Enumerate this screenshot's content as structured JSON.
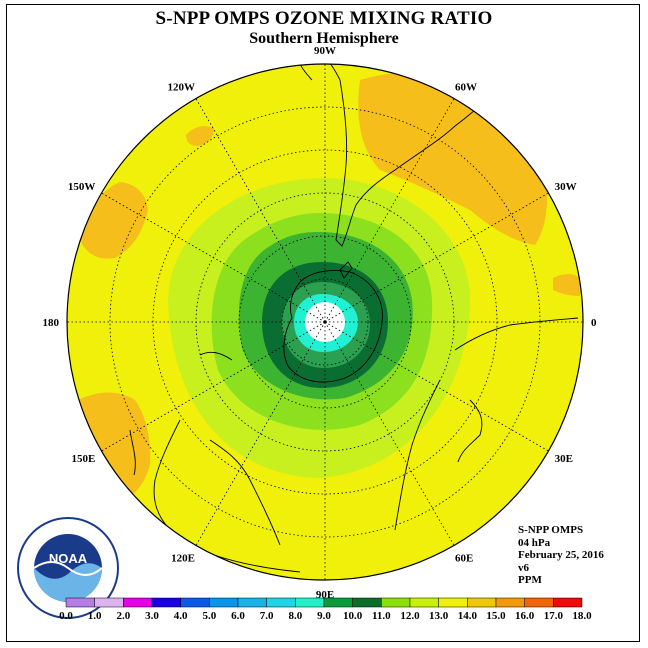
{
  "title": "S-NPP OMPS OZONE MIXING RATIO",
  "subtitle": "Southern Hemisphere",
  "longitude_labels": [
    {
      "text": "90W",
      "lon": -90
    },
    {
      "text": "60W",
      "lon": -60
    },
    {
      "text": "120W",
      "lon": -120
    },
    {
      "text": "30W",
      "lon": -30
    },
    {
      "text": "150W",
      "lon": -150
    },
    {
      "text": "0",
      "lon": 0
    },
    {
      "text": "180",
      "lon": 180
    },
    {
      "text": "30E",
      "lon": 30
    },
    {
      "text": "150E",
      "lon": 150
    },
    {
      "text": "60E",
      "lon": 60
    },
    {
      "text": "120E",
      "lon": 120
    },
    {
      "text": "90E",
      "lon": 90
    }
  ],
  "info": {
    "instrument": "S-NPP OMPS",
    "level": "04 hPa",
    "date": "February 25, 2016",
    "version": "v6",
    "units": "PPM"
  },
  "colorbar": {
    "labels": [
      "0.0",
      "1.0",
      "2.0",
      "3.0",
      "4.0",
      "5.0",
      "6.0",
      "7.0",
      "8.0",
      "9.0",
      "10.0",
      "11.0",
      "12.0",
      "13.0",
      "14.0",
      "15.0",
      "16.0",
      "17.0",
      "18.0"
    ],
    "colors": [
      "#b57ee6",
      "#dcb3ee",
      "#e600e6",
      "#1a00e6",
      "#0a5ae6",
      "#0a96e6",
      "#1ab2e6",
      "#22d2e6",
      "#22f0c8",
      "#0a9a3c",
      "#0a6e2a",
      "#8ce00a",
      "#c8f00a",
      "#f0f00a",
      "#f0c80a",
      "#f09a0a",
      "#f0640a",
      "#f00a0a",
      "#7a4a2a"
    ]
  },
  "map_colors": {
    "level_12_13": "#f0f00a",
    "level_13_14": "#f5be1a",
    "level_11_12": "#c8f01e",
    "level_10_11": "#8ce01e",
    "level_9_10": "#3cb432",
    "level_8_9": "#0a6e32",
    "level_7_8": "#2aa050",
    "level_6_7": "#22f0d2",
    "level_lt6": "#ffffff"
  },
  "logo": {
    "text": "NOAA",
    "icon": "noaa-logo-icon"
  }
}
